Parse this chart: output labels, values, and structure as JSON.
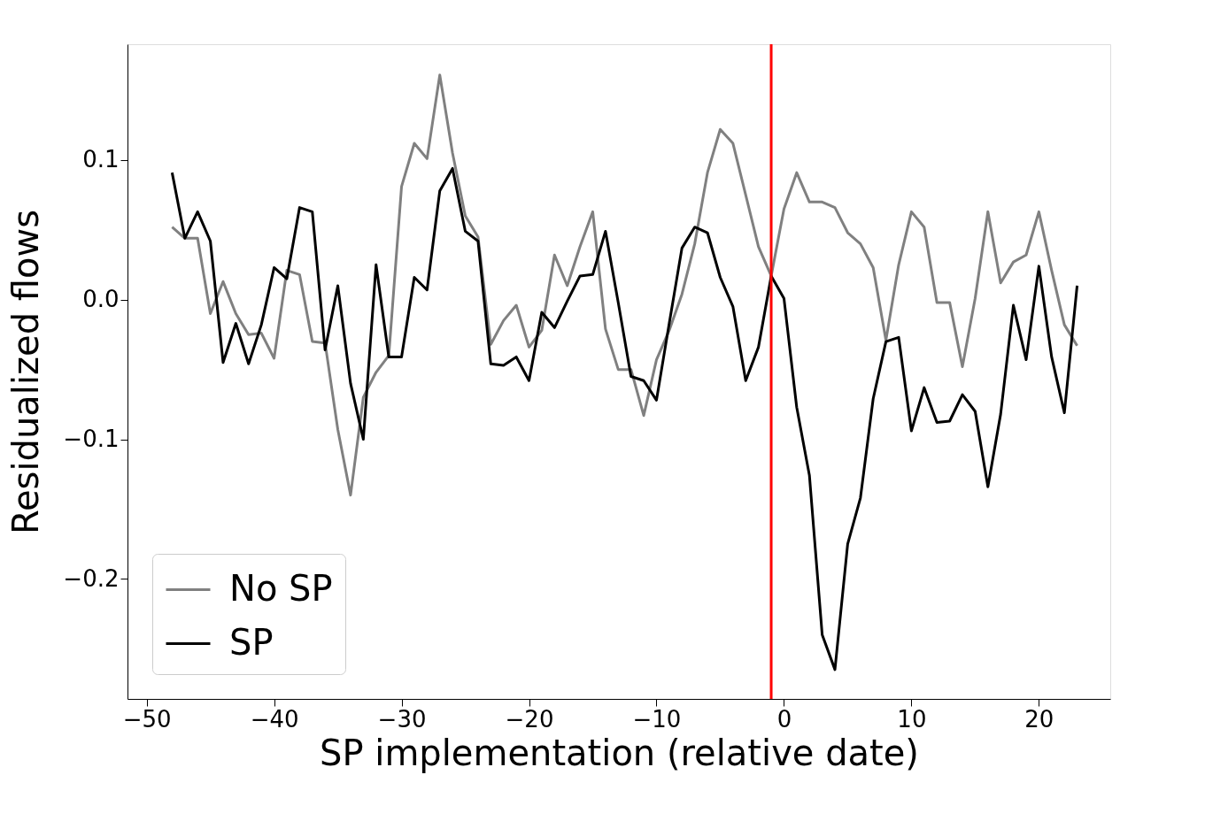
{
  "chart_data": {
    "type": "line",
    "xlabel": "SP implementation (relative date)",
    "ylabel": "Residualized flows",
    "x": [
      -48,
      -47,
      -46,
      -45,
      -44,
      -43,
      -42,
      -41,
      -40,
      -39,
      -38,
      -37,
      -36,
      -35,
      -34,
      -33,
      -32,
      -31,
      -30,
      -29,
      -28,
      -27,
      -26,
      -25,
      -24,
      -23,
      -22,
      -21,
      -20,
      -19,
      -18,
      -17,
      -16,
      -15,
      -14,
      -13,
      -12,
      -11,
      -10,
      -9,
      -8,
      -7,
      -6,
      -5,
      -4,
      -3,
      -2,
      -1,
      0,
      1,
      2,
      3,
      4,
      5,
      6,
      7,
      8,
      9,
      10,
      11,
      12,
      13,
      14,
      15,
      16,
      17,
      18,
      19,
      20,
      21,
      22,
      23
    ],
    "series": [
      {
        "name": "No SP",
        "color": "#808080",
        "values": [
          0.052,
          0.044,
          0.044,
          -0.01,
          0.013,
          -0.01,
          -0.025,
          -0.024,
          -0.042,
          0.021,
          0.018,
          -0.03,
          -0.031,
          -0.093,
          -0.14,
          -0.07,
          -0.052,
          -0.04,
          0.081,
          0.112,
          0.101,
          0.161,
          0.105,
          0.06,
          0.045,
          -0.032,
          -0.015,
          -0.004,
          -0.034,
          -0.022,
          0.032,
          0.01,
          0.038,
          0.063,
          -0.021,
          -0.05,
          -0.05,
          -0.083,
          -0.043,
          -0.022,
          0.004,
          0.04,
          0.091,
          0.122,
          0.112,
          0.075,
          0.038,
          0.017,
          0.065,
          0.091,
          0.07,
          0.07,
          0.066,
          0.048,
          0.04,
          0.023,
          -0.029,
          0.025,
          0.063,
          0.052,
          -0.002,
          -0.002,
          -0.048,
          0.001,
          0.063,
          0.012,
          0.027,
          0.032,
          0.063,
          0.021,
          -0.018,
          -0.033
        ]
      },
      {
        "name": "SP",
        "color": "#000000",
        "values": [
          0.091,
          0.044,
          0.063,
          0.042,
          -0.045,
          -0.017,
          -0.046,
          -0.018,
          0.023,
          0.015,
          0.066,
          0.063,
          -0.036,
          0.01,
          -0.06,
          -0.1,
          0.025,
          -0.041,
          -0.041,
          0.016,
          0.007,
          0.078,
          0.094,
          0.049,
          0.042,
          -0.046,
          -0.047,
          -0.041,
          -0.058,
          -0.009,
          -0.02,
          -0.001,
          0.017,
          0.018,
          0.049,
          -0.002,
          -0.055,
          -0.058,
          -0.072,
          -0.017,
          0.037,
          0.052,
          0.048,
          0.016,
          -0.005,
          -0.058,
          -0.034,
          0.017,
          0.001,
          -0.077,
          -0.126,
          -0.24,
          -0.265,
          -0.175,
          -0.142,
          -0.071,
          -0.03,
          -0.027,
          -0.094,
          -0.063,
          -0.088,
          -0.087,
          -0.068,
          -0.08,
          -0.134,
          -0.082,
          -0.004,
          -0.043,
          0.024,
          -0.041,
          -0.081,
          0.01
        ]
      }
    ],
    "xlim": [
      -51.5,
      25.6
    ],
    "xticks": [
      {
        "value": -50,
        "label": "−50"
      },
      {
        "value": -40,
        "label": "−40"
      },
      {
        "value": -30,
        "label": "−30"
      },
      {
        "value": -20,
        "label": "−20"
      },
      {
        "value": -10,
        "label": "−10"
      },
      0,
      10,
      20
    ],
    "ylim": [
      -0.286,
      0.183
    ],
    "yticks": [
      {
        "value": -0.2,
        "label": "−0.2"
      },
      {
        "value": -0.1,
        "label": "−0.1"
      },
      {
        "value": 0.0,
        "label": "0.0"
      },
      {
        "value": 0.1,
        "label": "0.1"
      }
    ],
    "ref_lines": [
      {
        "axis": "x",
        "value": -1,
        "color": "#ff0000"
      }
    ],
    "legend": "bottom left",
    "grid": false
  }
}
